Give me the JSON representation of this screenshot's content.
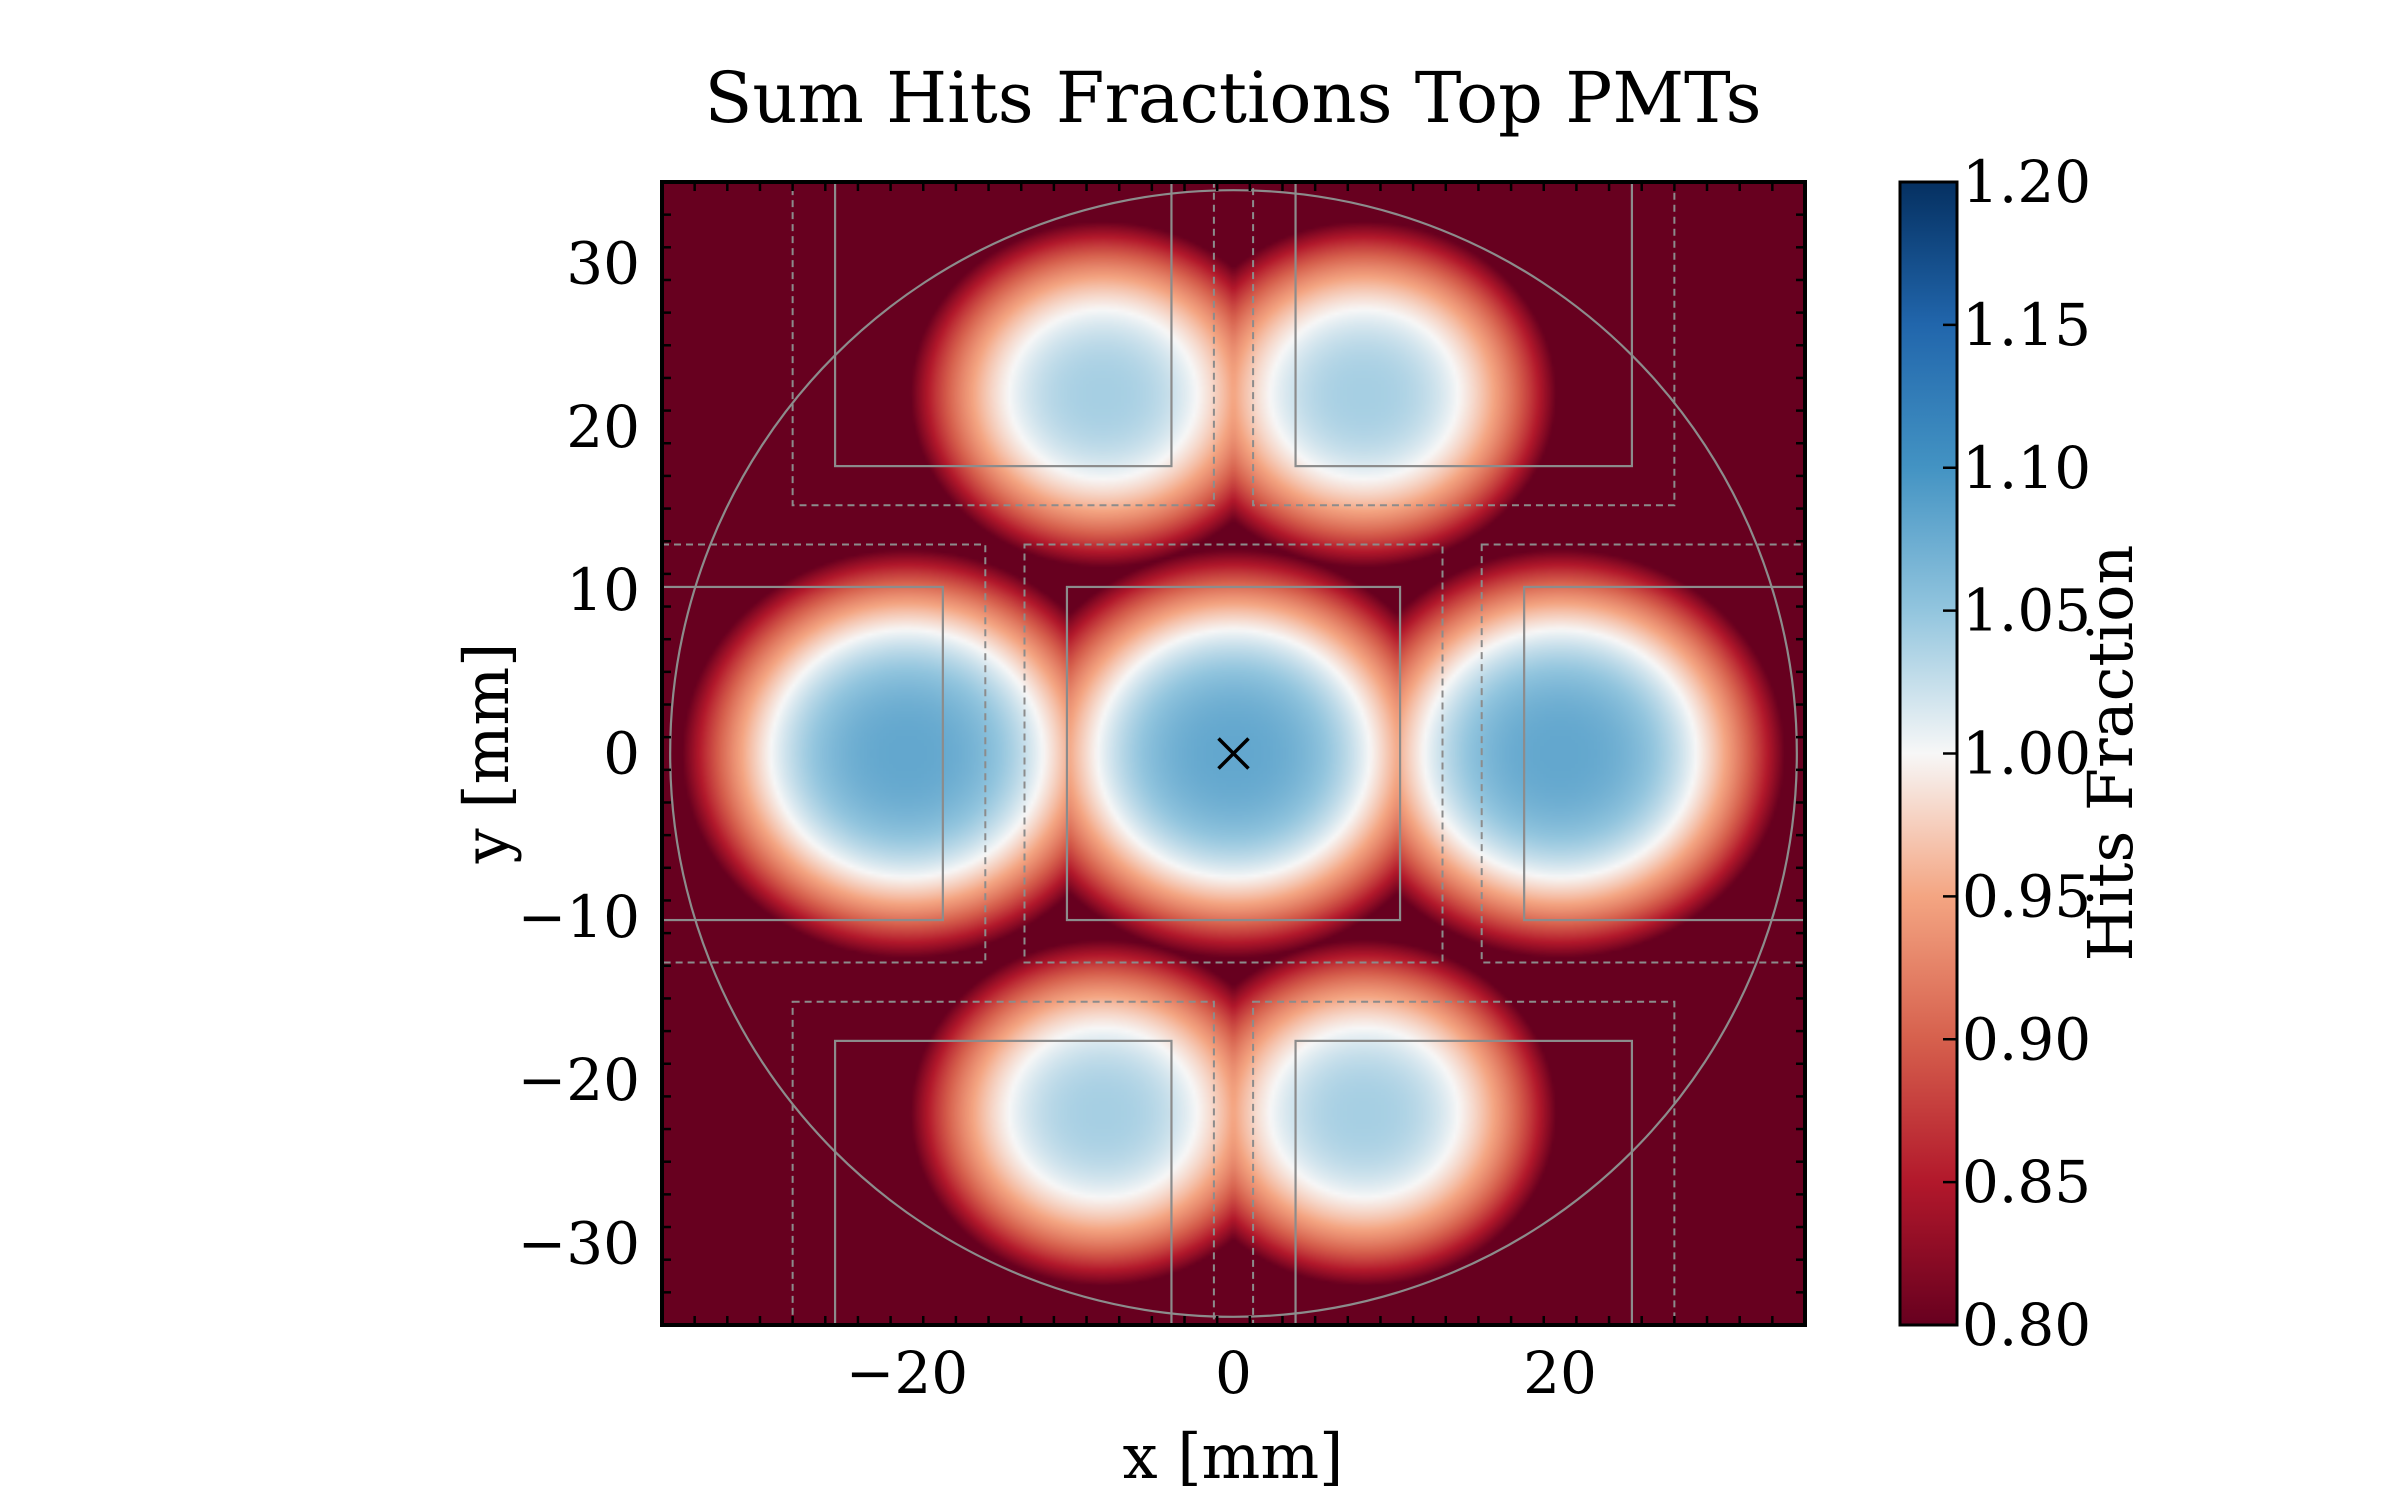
{
  "chart_data": {
    "type": "heatmap",
    "title": "Sum Hits Fractions Top PMTs",
    "xlabel": "x [mm]",
    "ylabel": "y [mm]",
    "colorbar_label": "Hits Fraction",
    "colormap": "RdBu",
    "color_low": "#67001f",
    "color_mid": "#f7f7f7",
    "color_high": "#053061",
    "xlim": [
      -35,
      35
    ],
    "ylim": [
      -35,
      35
    ],
    "clim": [
      0.8,
      1.2
    ],
    "x_ticks": [
      {
        "value": -20,
        "label": "−20"
      },
      {
        "value": 0,
        "label": "0"
      },
      {
        "value": 20,
        "label": "20"
      }
    ],
    "y_ticks": [
      {
        "value": 30,
        "label": "30"
      },
      {
        "value": 20,
        "label": "20"
      },
      {
        "value": 10,
        "label": "10"
      },
      {
        "value": 0,
        "label": "0"
      },
      {
        "value": -10,
        "label": "−10"
      },
      {
        "value": -20,
        "label": "−20"
      },
      {
        "value": -30,
        "label": "−30"
      }
    ],
    "colorbar_ticks": [
      {
        "value": 1.2,
        "label": "1.20"
      },
      {
        "value": 1.15,
        "label": "1.15"
      },
      {
        "value": 1.1,
        "label": "1.10"
      },
      {
        "value": 1.05,
        "label": "1.05"
      },
      {
        "value": 1.0,
        "label": "1.00"
      },
      {
        "value": 0.95,
        "label": "0.95"
      },
      {
        "value": 0.9,
        "label": "0.90"
      },
      {
        "value": 0.85,
        "label": "0.85"
      },
      {
        "value": 0.8,
        "label": "0.80"
      }
    ],
    "field_peaks": [
      {
        "x": 0,
        "y": 0,
        "value": 1.08
      },
      {
        "x": -20,
        "y": 0,
        "value": 1.08
      },
      {
        "x": 20,
        "y": 0,
        "value": 1.08
      },
      {
        "x": -8,
        "y": 22,
        "value": 1.04
      },
      {
        "x": 8,
        "y": 22,
        "value": 1.04
      },
      {
        "x": -8,
        "y": -22,
        "value": 1.04
      },
      {
        "x": 8,
        "y": -22,
        "value": 1.04
      }
    ],
    "boundary_circle": {
      "cx": 0,
      "cy": 0,
      "r": 34.5
    },
    "pmt_rects_solid": [
      {
        "x0": -10.2,
        "x1": 10.2,
        "y0": -10.2,
        "y1": 10.2
      },
      {
        "x0": -35,
        "x1": -17.8,
        "y0": -10.2,
        "y1": 10.2
      },
      {
        "x0": 17.8,
        "x1": 35,
        "y0": -10.2,
        "y1": 10.2
      },
      {
        "x0": -24.4,
        "x1": -3.8,
        "y0": 17.6,
        "y1": 35
      },
      {
        "x0": 3.8,
        "x1": 24.4,
        "y0": 17.6,
        "y1": 35
      },
      {
        "x0": -24.4,
        "x1": -3.8,
        "y0": -35,
        "y1": -17.6
      },
      {
        "x0": 3.8,
        "x1": 24.4,
        "y0": -35,
        "y1": -17.6
      }
    ],
    "pmt_rects_dashed": [
      {
        "x0": -12.8,
        "x1": 12.8,
        "y0": -12.8,
        "y1": 12.8
      },
      {
        "x0": -35,
        "x1": -15.2,
        "y0": -12.8,
        "y1": 12.8
      },
      {
        "x0": 15.2,
        "x1": 35,
        "y0": -12.8,
        "y1": 12.8
      },
      {
        "x0": -27,
        "x1": -1.2,
        "y0": 15.2,
        "y1": 35
      },
      {
        "x0": 1.2,
        "x1": 27,
        "y0": 15.2,
        "y1": 35
      },
      {
        "x0": -27,
        "x1": -1.2,
        "y0": -35,
        "y1": -15.2
      },
      {
        "x0": 1.2,
        "x1": 27,
        "y0": -35,
        "y1": -15.2
      }
    ],
    "center_marker": {
      "x": 0,
      "y": 0,
      "symbol": "x"
    }
  }
}
